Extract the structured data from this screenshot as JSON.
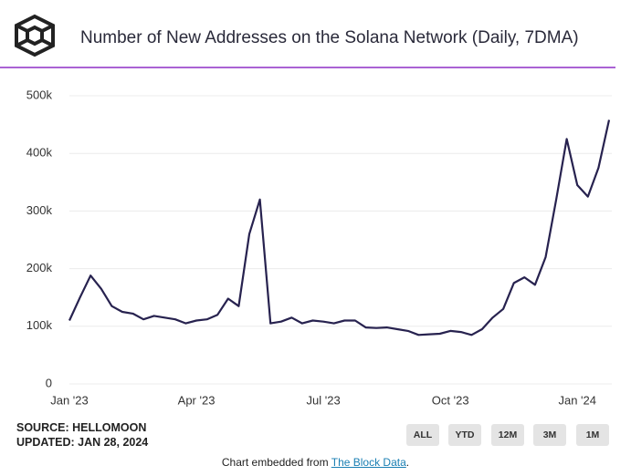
{
  "chart_data": {
    "type": "line",
    "title": "Number of New Addresses on the Solana Network (Daily, 7DMA)",
    "categories": [
      "Jan '23",
      null,
      null,
      null,
      null,
      null,
      null,
      null,
      null,
      null,
      null,
      null,
      "Apr '23",
      null,
      null,
      null,
      null,
      null,
      null,
      null,
      null,
      null,
      null,
      null,
      "Jul '23",
      null,
      null,
      null,
      null,
      null,
      null,
      null,
      null,
      null,
      null,
      null,
      "Oct '23",
      null,
      null,
      null,
      null,
      null,
      null,
      null,
      null,
      null,
      null,
      null,
      "Jan '24",
      null,
      null,
      null
    ],
    "values": [
      110000,
      150000,
      188000,
      165000,
      135000,
      125000,
      122000,
      112000,
      118000,
      115000,
      112000,
      105000,
      110000,
      112000,
      120000,
      148000,
      135000,
      260000,
      320000,
      105000,
      108000,
      115000,
      105000,
      110000,
      108000,
      105000,
      110000,
      110000,
      98000,
      97000,
      98000,
      95000,
      92000,
      85000,
      86000,
      87000,
      92000,
      90000,
      85000,
      95000,
      115000,
      130000,
      175000,
      185000,
      172000,
      220000,
      320000,
      425000,
      345000,
      325000,
      375000,
      458000
    ],
    "color": "#27224f",
    "ylim": [
      0,
      500000
    ],
    "yticks": [
      0,
      {
        "value": 100000,
        "label": "100k"
      },
      {
        "value": 200000,
        "label": "200k"
      },
      {
        "value": 300000,
        "label": "300k"
      },
      {
        "value": 400000,
        "label": "400k"
      },
      {
        "value": 500000,
        "label": "500k"
      }
    ],
    "grid": true
  },
  "source": "SOURCE: HELLOMOON",
  "updated": "UPDATED: JAN 28, 2024",
  "buttons": [
    "ALL",
    "YTD",
    "12M",
    "3M",
    "1M"
  ],
  "footer": {
    "prefix": "Chart embedded from",
    "link": "The Block Data",
    "suffix": "."
  }
}
